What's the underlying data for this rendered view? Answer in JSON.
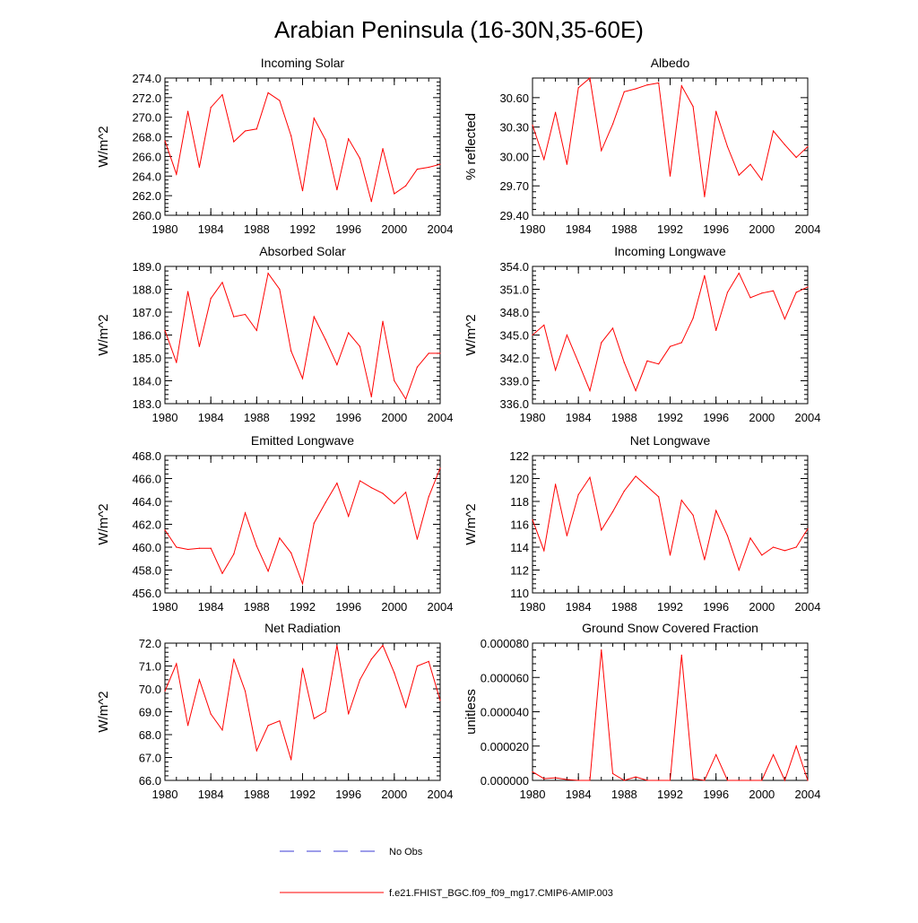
{
  "title": "Arabian Peninsula (16-30N,35-60E)",
  "colors": {
    "series": "#ff0000",
    "obs": "#3b3bd6",
    "axis": "#000000"
  },
  "legend": {
    "obs_label": "No Obs",
    "model_label": "f.e21.FHIST_BGC.f09_f09_mg17.CMIP6-AMIP.003"
  },
  "chart_data": [
    {
      "type": "line",
      "title": "Incoming Solar",
      "ylabel": "W/m^2",
      "xlim": [
        1980,
        2004
      ],
      "ylim": [
        260,
        274
      ],
      "xticks": [
        1980,
        1984,
        1988,
        1992,
        1996,
        2000,
        2004
      ],
      "xtick_labels": [
        "1980",
        "1984",
        "1988",
        "1992",
        "1996",
        "2000",
        "2004"
      ],
      "yticks": [
        260,
        262,
        264,
        266,
        268,
        270,
        272,
        274
      ],
      "ytick_labels": [
        "260.0",
        "262.0",
        "264.0",
        "266.0",
        "268.0",
        "270.0",
        "272.0",
        "274.0"
      ],
      "x": [
        1980,
        1981,
        1982,
        1983,
        1984,
        1985,
        1986,
        1987,
        1988,
        1989,
        1990,
        1991,
        1992,
        1993,
        1994,
        1995,
        1996,
        1997,
        1998,
        1999,
        2000,
        2001,
        2002,
        2003,
        2004
      ],
      "values": [
        267.6,
        264.2,
        270.6,
        264.9,
        271.0,
        272.3,
        267.5,
        268.6,
        268.8,
        272.5,
        271.7,
        268.1,
        262.5,
        269.9,
        267.7,
        262.6,
        267.8,
        265.8,
        261.4,
        266.8,
        262.2,
        263.0,
        264.7,
        264.9,
        265.2
      ]
    },
    {
      "type": "line",
      "title": "Albedo",
      "ylabel": "% reflected",
      "xlim": [
        1980,
        2004
      ],
      "ylim": [
        29.4,
        30.8
      ],
      "xticks": [
        1980,
        1984,
        1988,
        1992,
        1996,
        2000,
        2004
      ],
      "xtick_labels": [
        "1980",
        "1984",
        "1988",
        "1992",
        "1996",
        "2000",
        "2004"
      ],
      "yticks": [
        29.4,
        29.7,
        30.0,
        30.3,
        30.6
      ],
      "ytick_labels": [
        "29.40",
        "29.70",
        "30.00",
        "30.30",
        "30.60"
      ],
      "x": [
        1980,
        1981,
        1982,
        1983,
        1984,
        1985,
        1986,
        1987,
        1988,
        1989,
        1990,
        1991,
        1992,
        1993,
        1994,
        1995,
        1996,
        1997,
        1998,
        1999,
        2000,
        2001,
        2002,
        2003,
        2004
      ],
      "values": [
        30.32,
        29.97,
        30.45,
        29.92,
        30.7,
        30.8,
        30.06,
        30.33,
        30.66,
        30.69,
        30.73,
        30.75,
        29.8,
        30.72,
        30.51,
        29.59,
        30.46,
        30.1,
        29.81,
        29.92,
        29.76,
        30.26,
        30.12,
        29.99,
        30.1
      ]
    },
    {
      "type": "line",
      "title": "Absorbed Solar",
      "ylabel": "W/m^2",
      "xlim": [
        1980,
        2004
      ],
      "ylim": [
        183,
        189
      ],
      "xticks": [
        1980,
        1984,
        1988,
        1992,
        1996,
        2000,
        2004
      ],
      "xtick_labels": [
        "1980",
        "1984",
        "1988",
        "1992",
        "1996",
        "2000",
        "2004"
      ],
      "yticks": [
        183,
        184,
        185,
        186,
        187,
        188,
        189
      ],
      "ytick_labels": [
        "183.0",
        "184.0",
        "185.0",
        "186.0",
        "187.0",
        "188.0",
        "189.0"
      ],
      "x": [
        1980,
        1981,
        1982,
        1983,
        1984,
        1985,
        1986,
        1987,
        1988,
        1989,
        1990,
        1991,
        1992,
        1993,
        1994,
        1995,
        1996,
        1997,
        1998,
        1999,
        2000,
        2001,
        2002,
        2003,
        2004
      ],
      "values": [
        186.2,
        184.8,
        187.9,
        185.5,
        187.6,
        188.3,
        186.8,
        186.9,
        186.2,
        188.7,
        188.0,
        185.3,
        184.1,
        186.8,
        185.8,
        184.7,
        186.1,
        185.5,
        183.3,
        186.6,
        184.0,
        183.2,
        184.6,
        185.2,
        185.2
      ]
    },
    {
      "type": "line",
      "title": "Incoming Longwave",
      "ylabel": "W/m^2",
      "xlim": [
        1980,
        2004
      ],
      "ylim": [
        336,
        354
      ],
      "xticks": [
        1980,
        1984,
        1988,
        1992,
        1996,
        2000,
        2004
      ],
      "xtick_labels": [
        "1980",
        "1984",
        "1988",
        "1992",
        "1996",
        "2000",
        "2004"
      ],
      "yticks": [
        336,
        339,
        342,
        345,
        348,
        351,
        354
      ],
      "ytick_labels": [
        "336.0",
        "339.0",
        "342.0",
        "345.0",
        "348.0",
        "351.0",
        "354.0"
      ],
      "x": [
        1980,
        1981,
        1982,
        1983,
        1984,
        1985,
        1986,
        1987,
        1988,
        1989,
        1990,
        1991,
        1992,
        1993,
        1994,
        1995,
        1996,
        1997,
        1998,
        1999,
        2000,
        2001,
        2002,
        2003,
        2004
      ],
      "values": [
        345.0,
        346.3,
        340.4,
        345.0,
        341.4,
        337.7,
        344.0,
        345.9,
        341.4,
        337.7,
        341.6,
        341.2,
        343.5,
        344.0,
        347.2,
        352.8,
        345.6,
        350.6,
        353.1,
        349.9,
        350.5,
        350.8,
        347.1,
        350.6,
        351.3
      ]
    },
    {
      "type": "line",
      "title": "Emitted Longwave",
      "ylabel": "W/m^2",
      "xlim": [
        1980,
        2004
      ],
      "ylim": [
        456,
        468
      ],
      "xticks": [
        1980,
        1984,
        1988,
        1992,
        1996,
        2000,
        2004
      ],
      "xtick_labels": [
        "1980",
        "1984",
        "1988",
        "1992",
        "1996",
        "2000",
        "2004"
      ],
      "yticks": [
        456,
        458,
        460,
        462,
        464,
        466,
        468
      ],
      "ytick_labels": [
        "456.0",
        "458.0",
        "460.0",
        "462.0",
        "464.0",
        "466.0",
        "468.0"
      ],
      "x": [
        1980,
        1981,
        1982,
        1983,
        1984,
        1985,
        1986,
        1987,
        1988,
        1989,
        1990,
        1991,
        1992,
        1993,
        1994,
        1995,
        1996,
        1997,
        1998,
        1999,
        2000,
        2001,
        2002,
        2003,
        2004
      ],
      "values": [
        461.5,
        460.0,
        459.8,
        459.9,
        459.9,
        457.7,
        459.4,
        463.0,
        460.1,
        457.9,
        460.8,
        459.5,
        456.8,
        462.1,
        463.9,
        465.6,
        462.7,
        465.8,
        465.2,
        464.7,
        463.8,
        464.8,
        460.7,
        464.4,
        466.9
      ]
    },
    {
      "type": "line",
      "title": "Net Longwave",
      "ylabel": "W/m^2",
      "xlim": [
        1980,
        2004
      ],
      "ylim": [
        110,
        122
      ],
      "xticks": [
        1980,
        1984,
        1988,
        1992,
        1996,
        2000,
        2004
      ],
      "xtick_labels": [
        "1980",
        "1984",
        "1988",
        "1992",
        "1996",
        "2000",
        "2004"
      ],
      "yticks": [
        110,
        112,
        114,
        116,
        118,
        120,
        122
      ],
      "ytick_labels": [
        "110",
        "112",
        "114",
        "116",
        "118",
        "120",
        "122"
      ],
      "x": [
        1980,
        1981,
        1982,
        1983,
        1984,
        1985,
        1986,
        1987,
        1988,
        1989,
        1990,
        1991,
        1992,
        1993,
        1994,
        1995,
        1996,
        1997,
        1998,
        1999,
        2000,
        2001,
        2002,
        2003,
        2004
      ],
      "values": [
        116.4,
        113.7,
        119.5,
        115.0,
        118.6,
        120.1,
        115.5,
        117.1,
        118.9,
        120.2,
        119.3,
        118.4,
        113.3,
        118.1,
        116.8,
        112.9,
        117.2,
        115.0,
        112.0,
        114.8,
        113.3,
        114.0,
        113.7,
        114.0,
        115.6
      ]
    },
    {
      "type": "line",
      "title": "Net Radiation",
      "ylabel": "W/m^2",
      "xlim": [
        1980,
        2004
      ],
      "ylim": [
        66,
        72
      ],
      "xticks": [
        1980,
        1984,
        1988,
        1992,
        1996,
        2000,
        2004
      ],
      "xtick_labels": [
        "1980",
        "1984",
        "1988",
        "1992",
        "1996",
        "2000",
        "2004"
      ],
      "yticks": [
        66,
        67,
        68,
        69,
        70,
        71,
        72
      ],
      "ytick_labels": [
        "66.0",
        "67.0",
        "68.0",
        "69.0",
        "70.0",
        "71.0",
        "72.0"
      ],
      "x": [
        1980,
        1981,
        1982,
        1983,
        1984,
        1985,
        1986,
        1987,
        1988,
        1989,
        1990,
        1991,
        1992,
        1993,
        1994,
        1995,
        1996,
        1997,
        1998,
        1999,
        2000,
        2001,
        2002,
        2003,
        2004
      ],
      "values": [
        69.9,
        71.1,
        68.4,
        70.4,
        68.9,
        68.2,
        71.3,
        69.9,
        67.3,
        68.4,
        68.6,
        66.9,
        70.9,
        68.7,
        69.0,
        71.9,
        68.9,
        70.4,
        71.3,
        71.9,
        70.7,
        69.2,
        71.0,
        71.2,
        69.5
      ]
    },
    {
      "type": "line",
      "title": "Ground Snow Covered Fraction",
      "ylabel": "unitless",
      "xlim": [
        1980,
        2004
      ],
      "ylim": [
        0,
        8e-05
      ],
      "xticks": [
        1980,
        1984,
        1988,
        1992,
        1996,
        2000,
        2004
      ],
      "xtick_labels": [
        "1980",
        "1984",
        "1988",
        "1992",
        "1996",
        "2000",
        "2004"
      ],
      "yticks": [
        0,
        2e-05,
        4e-05,
        6e-05,
        8e-05
      ],
      "ytick_labels": [
        "0.000000",
        "0.000020",
        "0.000040",
        "0.000060",
        "0.000080"
      ],
      "x": [
        1980,
        1981,
        1982,
        1983,
        1984,
        1985,
        1986,
        1987,
        1988,
        1989,
        1990,
        1991,
        1992,
        1993,
        1994,
        1995,
        1996,
        1997,
        1998,
        1999,
        2000,
        2001,
        2002,
        2003,
        2004
      ],
      "values": [
        5e-06,
        1e-06,
        1.5e-06,
        5e-07,
        0.0,
        0.0,
        7.6e-05,
        4e-06,
        0.0,
        2e-06,
        0.0,
        0.0,
        0.0,
        7.3e-05,
        1e-06,
        0.0,
        1.5e-05,
        0.0,
        0.0,
        0.0,
        0.0,
        1.5e-05,
        0.0,
        2e-05,
        0.0
      ]
    }
  ]
}
